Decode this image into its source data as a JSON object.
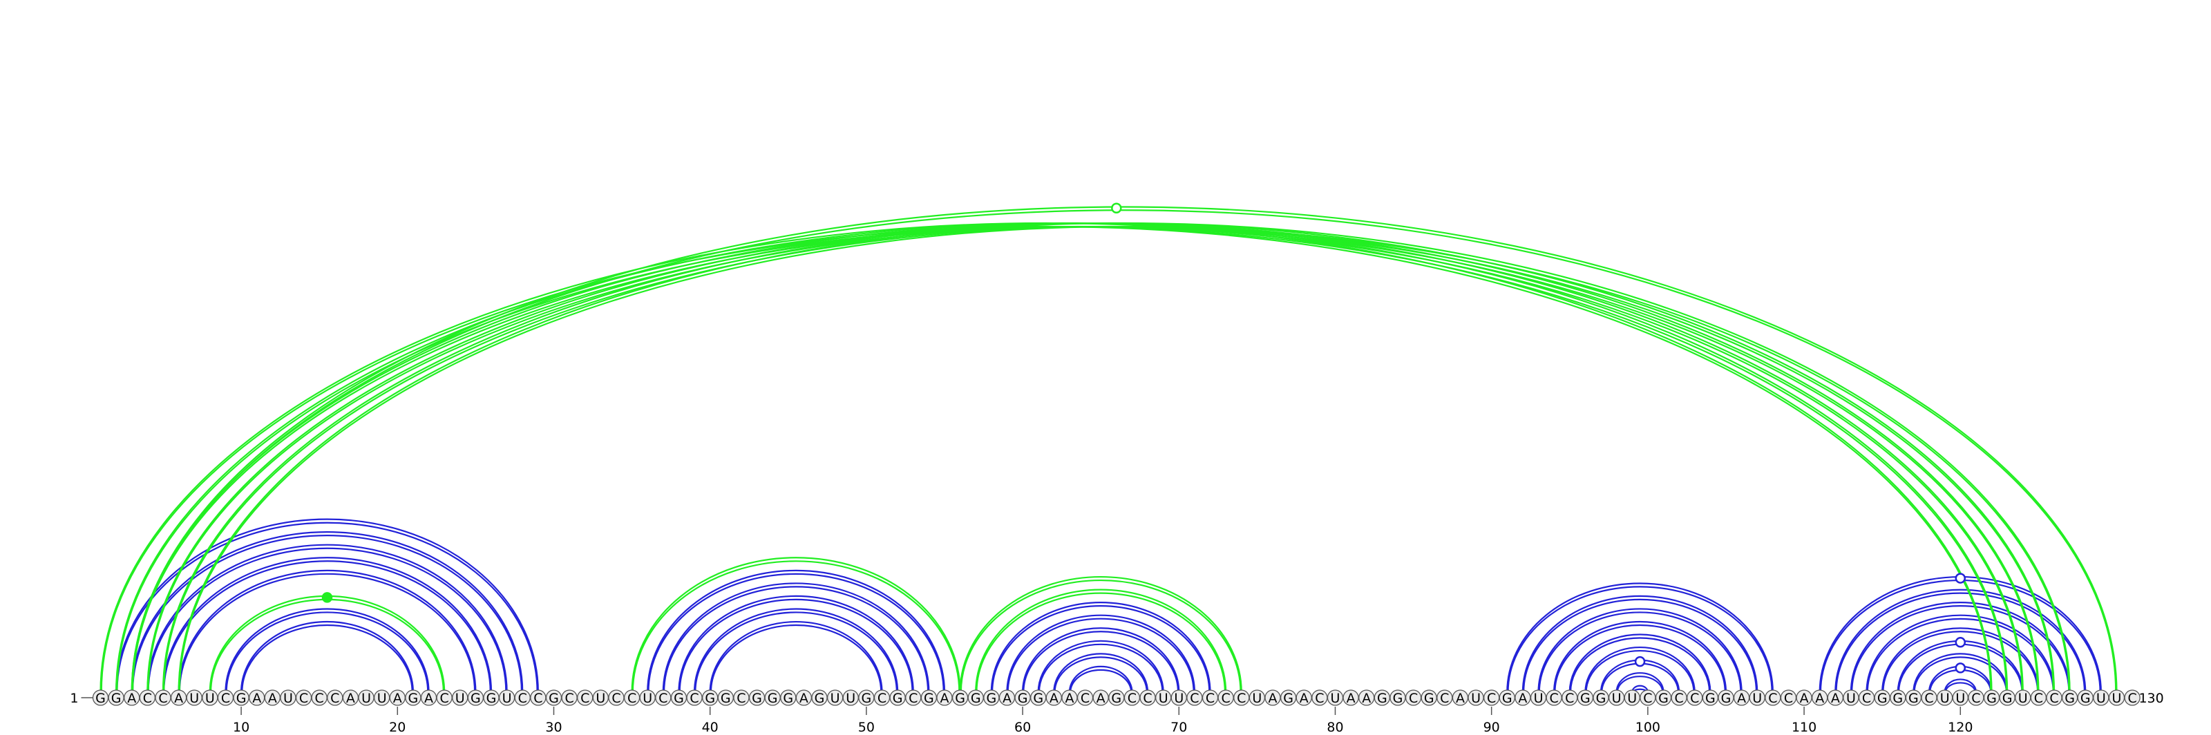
{
  "chart_data": {
    "type": "arc-diagram",
    "title": "",
    "sequence": "GGACCAUUCGAAUCCCAUUAGACUGGUCCGCCUCCUCGCGGCGGGAGUUGCGCGAGGGAGGAACAGCCUUCCCCUAGACUAAGGCGCAUCGAUCCGGUUCGCCGGAUCCAAAUCGGGCUUCGGUCCGGUUC",
    "length": 130,
    "start_label": "1",
    "end_label": "130",
    "ticks": [
      10,
      20,
      30,
      40,
      50,
      60,
      70,
      80,
      90,
      100,
      110,
      120
    ],
    "colors": {
      "blue": "#2222d8",
      "green": "#22ee22",
      "nucleotide_fill": "#ececec",
      "nucleotide_stroke": "#555555",
      "axis": "#555555"
    },
    "arcs": [
      {
        "i": 2,
        "j": 29,
        "color": "blue"
      },
      {
        "i": 3,
        "j": 28,
        "color": "blue"
      },
      {
        "i": 4,
        "j": 27,
        "color": "blue"
      },
      {
        "i": 5,
        "j": 26,
        "color": "blue"
      },
      {
        "i": 6,
        "j": 25,
        "color": "blue"
      },
      {
        "i": 8,
        "j": 23,
        "color": "green"
      },
      {
        "i": 9,
        "j": 22,
        "color": "blue"
      },
      {
        "i": 10,
        "j": 21,
        "color": "blue"
      },
      {
        "i": 35,
        "j": 56,
        "color": "green"
      },
      {
        "i": 36,
        "j": 55,
        "color": "blue"
      },
      {
        "i": 37,
        "j": 54,
        "color": "blue"
      },
      {
        "i": 38,
        "j": 53,
        "color": "blue"
      },
      {
        "i": 39,
        "j": 52,
        "color": "blue"
      },
      {
        "i": 40,
        "j": 51,
        "color": "blue"
      },
      {
        "i": 56,
        "j": 74,
        "color": "green"
      },
      {
        "i": 57,
        "j": 73,
        "color": "green"
      },
      {
        "i": 58,
        "j": 72,
        "color": "blue"
      },
      {
        "i": 59,
        "j": 71,
        "color": "blue"
      },
      {
        "i": 60,
        "j": 70,
        "color": "blue"
      },
      {
        "i": 61,
        "j": 69,
        "color": "blue"
      },
      {
        "i": 62,
        "j": 68,
        "color": "blue"
      },
      {
        "i": 63,
        "j": 67,
        "color": "blue"
      },
      {
        "i": 91,
        "j": 108,
        "color": "blue"
      },
      {
        "i": 92,
        "j": 107,
        "color": "blue"
      },
      {
        "i": 93,
        "j": 106,
        "color": "blue"
      },
      {
        "i": 94,
        "j": 105,
        "color": "blue"
      },
      {
        "i": 95,
        "j": 104,
        "color": "blue"
      },
      {
        "i": 96,
        "j": 103,
        "color": "blue"
      },
      {
        "i": 97,
        "j": 102,
        "color": "blue"
      },
      {
        "i": 98,
        "j": 101,
        "color": "blue"
      },
      {
        "i": 99,
        "j": 100,
        "color": "blue"
      },
      {
        "i": 111,
        "j": 129,
        "color": "blue"
      },
      {
        "i": 112,
        "j": 128,
        "color": "blue"
      },
      {
        "i": 113,
        "j": 127,
        "color": "blue"
      },
      {
        "i": 114,
        "j": 126,
        "color": "blue"
      },
      {
        "i": 115,
        "j": 125,
        "color": "blue"
      },
      {
        "i": 116,
        "j": 124,
        "color": "blue"
      },
      {
        "i": 117,
        "j": 123,
        "color": "blue"
      },
      {
        "i": 118,
        "j": 122,
        "color": "blue"
      },
      {
        "i": 119,
        "j": 121,
        "color": "blue"
      },
      {
        "i": 1,
        "j": 122,
        "color": "green"
      },
      {
        "i": 2,
        "j": 123,
        "color": "green"
      },
      {
        "i": 3,
        "j": 124,
        "color": "green"
      },
      {
        "i": 4,
        "j": 125,
        "color": "green"
      },
      {
        "i": 5,
        "j": 126,
        "color": "green"
      },
      {
        "i": 6,
        "j": 127,
        "color": "green"
      },
      {
        "i": 3,
        "j": 130,
        "color": "green"
      }
    ],
    "markers": [
      {
        "pos": 66,
        "color": "green",
        "filled": false,
        "on_arc": [
          3,
          130
        ]
      },
      {
        "pos": 15.5,
        "color": "green",
        "filled": true,
        "on_arc": [
          8,
          23
        ]
      },
      {
        "pos": 120,
        "color": "blue",
        "filled": false,
        "on_arc": [
          111,
          129
        ]
      },
      {
        "pos": 120,
        "color": "blue",
        "filled": false,
        "on_arc": [
          116,
          124
        ]
      },
      {
        "pos": 120,
        "color": "blue",
        "filled": false,
        "on_arc": [
          118,
          122
        ]
      },
      {
        "pos": 99.5,
        "color": "blue",
        "filled": false,
        "on_arc": [
          97,
          102
        ]
      }
    ]
  }
}
